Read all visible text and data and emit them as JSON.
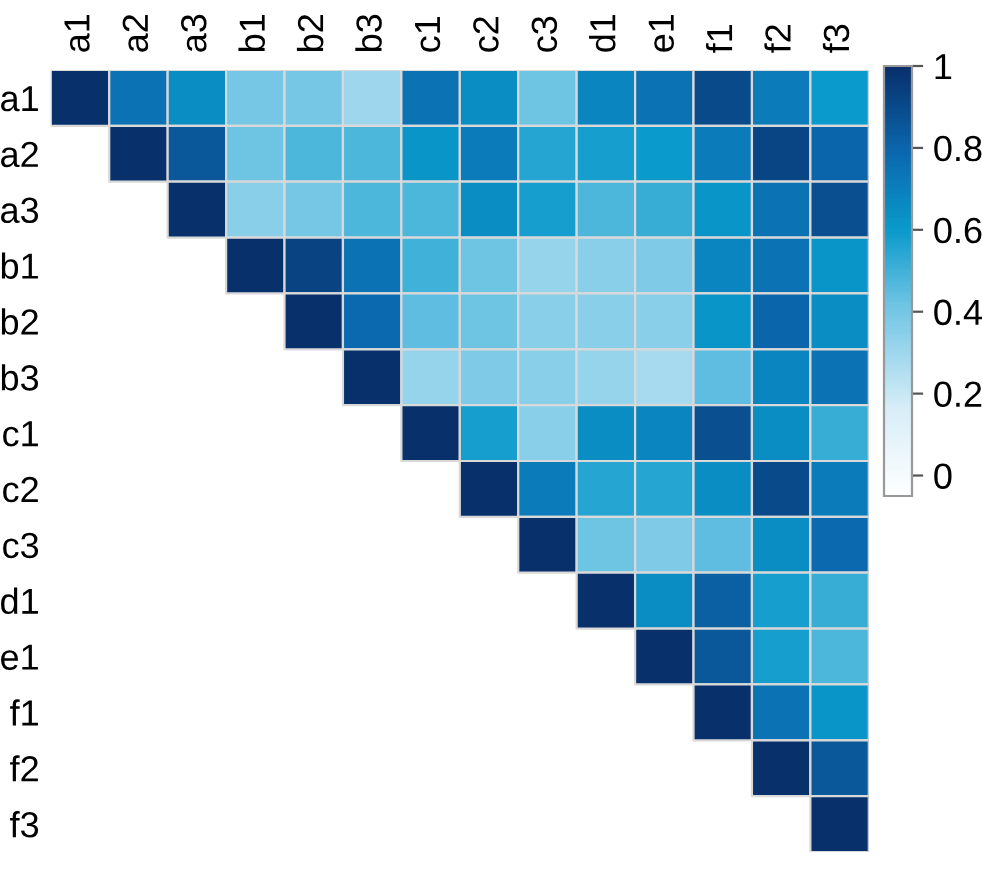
{
  "chart_data": {
    "type": "heatmap",
    "categories": [
      "a1",
      "a2",
      "a3",
      "b1",
      "b2",
      "b3",
      "c1",
      "c2",
      "c3",
      "d1",
      "e1",
      "f1",
      "f2",
      "f3"
    ],
    "y_categories": [
      "a1",
      "a2",
      "a3",
      "b1",
      "b2",
      "b3",
      "c1",
      "c2",
      "c3",
      "d1",
      "e1",
      "f1",
      "f2",
      "f3"
    ],
    "cells": [
      [
        1,
        0.75,
        0.65,
        0.4,
        0.4,
        0.3,
        0.75,
        0.65,
        0.42,
        0.68,
        0.75,
        0.9,
        0.72,
        0.6
      ],
      [
        null,
        1,
        0.85,
        0.42,
        0.48,
        0.48,
        0.62,
        0.72,
        0.55,
        0.58,
        0.6,
        0.72,
        0.92,
        0.8
      ],
      [
        null,
        null,
        1,
        0.35,
        0.4,
        0.48,
        0.48,
        0.65,
        0.58,
        0.48,
        0.52,
        0.62,
        0.75,
        0.88
      ],
      [
        null,
        null,
        null,
        1,
        0.93,
        0.75,
        0.5,
        0.42,
        0.32,
        0.35,
        0.38,
        0.68,
        0.75,
        0.62
      ],
      [
        null,
        null,
        null,
        null,
        1,
        0.78,
        0.45,
        0.42,
        0.35,
        0.35,
        0.35,
        0.62,
        0.8,
        0.65
      ],
      [
        null,
        null,
        null,
        null,
        null,
        1,
        0.32,
        0.38,
        0.35,
        0.32,
        0.28,
        0.45,
        0.68,
        0.75
      ],
      [
        null,
        null,
        null,
        null,
        null,
        null,
        1,
        0.58,
        0.35,
        0.65,
        0.68,
        0.88,
        0.65,
        0.52
      ],
      [
        null,
        null,
        null,
        null,
        null,
        null,
        null,
        1,
        0.72,
        0.55,
        0.55,
        0.65,
        0.9,
        0.72
      ],
      [
        null,
        null,
        null,
        null,
        null,
        null,
        null,
        null,
        1,
        0.42,
        0.38,
        0.45,
        0.65,
        0.78
      ],
      [
        null,
        null,
        null,
        null,
        null,
        null,
        null,
        null,
        null,
        1,
        0.65,
        0.82,
        0.58,
        0.52
      ],
      [
        null,
        null,
        null,
        null,
        null,
        null,
        null,
        null,
        null,
        null,
        1,
        0.85,
        0.58,
        0.48
      ],
      [
        null,
        null,
        null,
        null,
        null,
        null,
        null,
        null,
        null,
        null,
        null,
        1,
        0.75,
        0.62
      ],
      [
        null,
        null,
        null,
        null,
        null,
        null,
        null,
        null,
        null,
        null,
        null,
        null,
        1,
        0.85
      ],
      [
        null,
        null,
        null,
        null,
        null,
        null,
        null,
        null,
        null,
        null,
        null,
        null,
        null,
        1
      ]
    ],
    "clim": [
      -0.05,
      1
    ],
    "cticks": [
      0,
      0.2,
      0.4,
      0.6,
      0.8,
      1
    ]
  }
}
